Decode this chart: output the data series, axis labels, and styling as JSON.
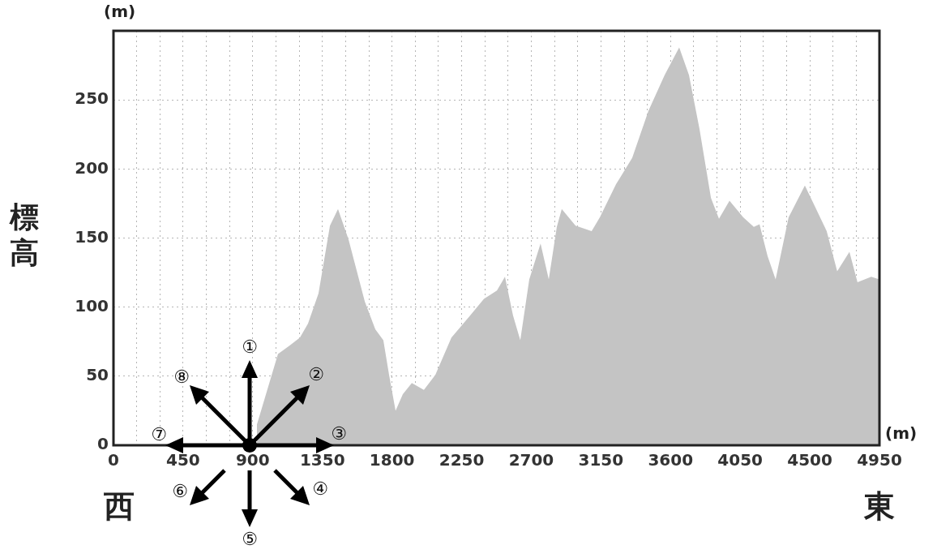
{
  "chart_data": {
    "type": "area",
    "xlabel": "(m)",
    "ylabel": "標高",
    "annotations": [
      "(m)",
      "西",
      "東",
      "①",
      "②",
      "③",
      "④",
      "⑤",
      "⑥",
      "⑦",
      "⑧"
    ],
    "x": [
      927,
      1063,
      1137,
      1205,
      1257,
      1325,
      1399,
      1451,
      1519,
      1624,
      1692,
      1744,
      1781,
      1823,
      1870,
      1928,
      2006,
      2080,
      2184,
      2305,
      2394,
      2478,
      2530,
      2582,
      2629,
      2687,
      2760,
      2813,
      2865,
      2897,
      2986,
      3090,
      3143,
      3248,
      3352,
      3457,
      3562,
      3656,
      3719,
      3787,
      3861,
      3913,
      3981,
      4070,
      4138,
      4175,
      4227,
      4279,
      4363,
      4468,
      4541,
      4609,
      4677,
      4756,
      4808,
      4897,
      4950
    ],
    "series": [
      {
        "color": "#c4c4c4",
        "values": [
          15,
          66,
          72,
          78,
          88,
          110,
          159,
          171,
          149,
          104,
          84,
          76,
          51,
          25,
          37,
          45,
          40,
          51,
          78,
          94,
          106,
          112,
          122,
          94,
          76,
          120,
          146,
          120,
          158,
          171,
          159,
          155,
          165,
          189,
          208,
          242,
          268,
          288,
          268,
          229,
          179,
          164,
          177,
          165,
          158,
          160,
          137,
          120,
          165,
          188,
          171,
          155,
          126,
          140,
          118,
          122,
          120
        ]
      }
    ],
    "xlim": [
      0,
      4950
    ],
    "ylim": [
      0,
      300
    ],
    "xticks": [
      0,
      {
        "value": 150,
        "label": null
      },
      {
        "value": 300,
        "label": null
      },
      450,
      {
        "value": 600,
        "label": null
      },
      {
        "value": 750,
        "label": null
      },
      900,
      {
        "value": 1050,
        "label": null
      },
      {
        "value": 1200,
        "label": null
      },
      1350,
      {
        "value": 1500,
        "label": null
      },
      {
        "value": 1650,
        "label": null
      },
      1800,
      {
        "value": 1950,
        "label": null
      },
      {
        "value": 2100,
        "label": null
      },
      2250,
      {
        "value": 2400,
        "label": null
      },
      {
        "value": 2550,
        "label": null
      },
      2700,
      {
        "value": 2850,
        "label": null
      },
      {
        "value": 3000,
        "label": null
      },
      3150,
      {
        "value": 3300,
        "label": null
      },
      {
        "value": 3450,
        "label": null
      },
      3600,
      {
        "value": 3750,
        "label": null
      },
      {
        "value": 3900,
        "label": null
      },
      4050,
      {
        "value": 4200,
        "label": null
      },
      {
        "value": 4350,
        "label": null
      },
      4500,
      {
        "value": 4650,
        "label": null
      },
      {
        "value": 4800,
        "label": null
      },
      4950
    ],
    "yticks": [
      0,
      50,
      100,
      150,
      200,
      250
    ],
    "grid": true
  }
}
